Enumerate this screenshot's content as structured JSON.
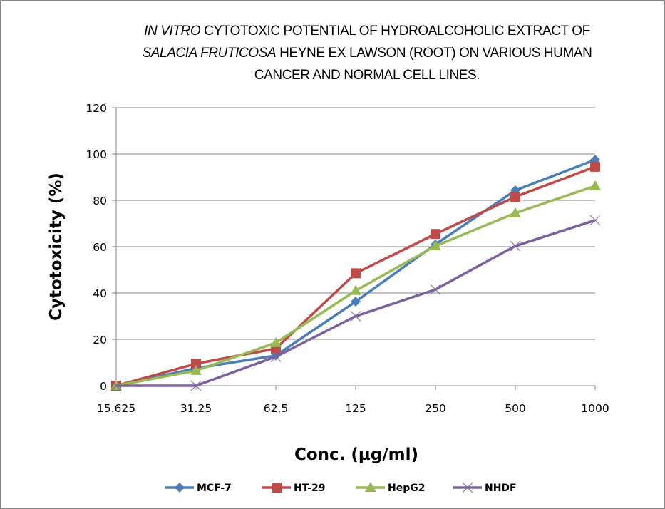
{
  "chart_data": {
    "type": "line",
    "title_parts": [
      {
        "text": "IN VITRO",
        "italic": true
      },
      {
        "text": " CYTOTOXIC  POTENTIAL OF HYDROALCOHOLIC EXTRACT OF",
        "italic": false
      },
      {
        "text": "SALACIA FRUTICOSA",
        "italic": true,
        "newline": true
      },
      {
        "text": " HEYNE EX LAWSON (ROOT) ON VARIOUS HUMAN",
        "italic": false
      },
      {
        "text": "CANCER AND NORMAL CELL LINES.",
        "italic": false,
        "newline": true
      }
    ],
    "title": "IN VITRO CYTOTOXIC POTENTIAL OF HYDROALCOHOLIC EXTRACT OF SALACIA FRUTICOSA HEYNE EX LAWSON (ROOT) ON VARIOUS HUMAN CANCER AND NORMAL CELL LINES.",
    "xlabel": "Conc. (µg/ml)",
    "ylabel": "Cytotoxicity (%)",
    "categories": [
      "15.625",
      "31.25",
      "62.5",
      "125",
      "250",
      "500",
      "1000"
    ],
    "ylim": [
      0,
      120
    ],
    "yticks": [
      0,
      20,
      40,
      60,
      80,
      100,
      120
    ],
    "grid": true,
    "legend_position": "bottom",
    "series": [
      {
        "name": "MCF-7",
        "color": "#4A7EBB",
        "marker": "diamond",
        "values": [
          0,
          7.5,
          13,
          36.3,
          61,
          84.3,
          97.5
        ]
      },
      {
        "name": "HT-29",
        "color": "#BE4B48",
        "marker": "square",
        "values": [
          0,
          9.5,
          16,
          48.5,
          65.5,
          81.5,
          94.5
        ]
      },
      {
        "name": "HepG2",
        "color": "#98B954",
        "marker": "triangle",
        "values": [
          0,
          6.5,
          18.5,
          41,
          60.3,
          74.5,
          86.2
        ]
      },
      {
        "name": "NHDF",
        "color": "#7D60A0",
        "marker": "x",
        "values": [
          0,
          0,
          12.5,
          30,
          41.5,
          60.3,
          71.4
        ]
      }
    ]
  }
}
